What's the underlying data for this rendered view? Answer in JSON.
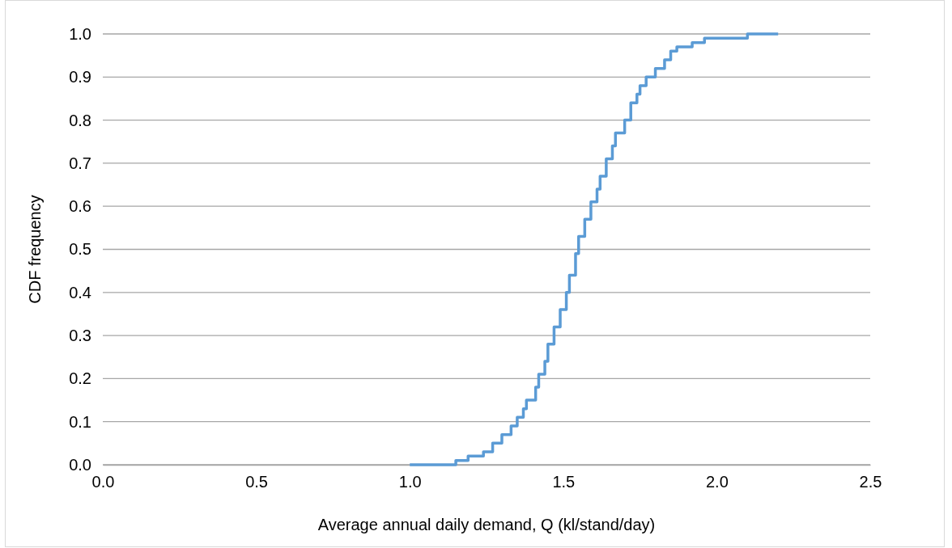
{
  "chart_data": {
    "type": "step",
    "xlabel": "Average annual daily demand, Q (kl/stand/day)",
    "ylabel": "CDF frequency",
    "xlim": [
      0,
      2.5
    ],
    "xticks": [
      {
        "value": 0,
        "label": "0.0"
      },
      {
        "value": 0.5,
        "label": "0.5"
      },
      {
        "value": 1,
        "label": "1.0"
      },
      {
        "value": 1.5,
        "label": "1.5"
      },
      {
        "value": 2,
        "label": "2.0"
      },
      {
        "value": 2.5,
        "label": "2.5"
      }
    ],
    "ylim": [
      0,
      1
    ],
    "yticks": [
      {
        "value": 0,
        "label": "0.0"
      },
      {
        "value": 0.1,
        "label": "0.1"
      },
      {
        "value": 0.2,
        "label": "0.2"
      },
      {
        "value": 0.3,
        "label": "0.3"
      },
      {
        "value": 0.4,
        "label": "0.4"
      },
      {
        "value": 0.5,
        "label": "0.5"
      },
      {
        "value": 0.6,
        "label": "0.6"
      },
      {
        "value": 0.7,
        "label": "0.7"
      },
      {
        "value": 0.8,
        "label": "0.8"
      },
      {
        "value": 0.9,
        "label": "0.9"
      },
      {
        "value": 1,
        "label": "1.0"
      }
    ],
    "grid": "y",
    "marker": "none",
    "line_style": "solid",
    "series": [
      {
        "color": "#5b9bd5",
        "x": [
          1.0,
          1.15,
          1.19,
          1.24,
          1.27,
          1.3,
          1.33,
          1.35,
          1.37,
          1.38,
          1.41,
          1.42,
          1.44,
          1.45,
          1.47,
          1.49,
          1.51,
          1.52,
          1.54,
          1.55,
          1.57,
          1.59,
          1.61,
          1.62,
          1.64,
          1.66,
          1.67,
          1.7,
          1.72,
          1.74,
          1.75,
          1.77,
          1.8,
          1.83,
          1.85,
          1.87,
          1.92,
          1.96,
          2.1,
          2.2
        ],
        "values": [
          0,
          0.01,
          0.02,
          0.03,
          0.05,
          0.07,
          0.09,
          0.11,
          0.13,
          0.15,
          0.18,
          0.21,
          0.24,
          0.28,
          0.32,
          0.36,
          0.4,
          0.44,
          0.49,
          0.53,
          0.57,
          0.61,
          0.64,
          0.67,
          0.71,
          0.74,
          0.77,
          0.8,
          0.84,
          0.86,
          0.88,
          0.9,
          0.92,
          0.94,
          0.96,
          0.97,
          0.98,
          0.99,
          1.0,
          1.0
        ]
      }
    ]
  }
}
